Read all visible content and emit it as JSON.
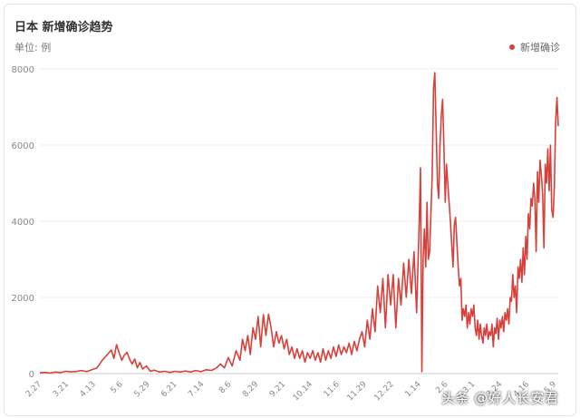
{
  "header": {
    "title": "日本 新增确诊趋势",
    "unit_label": "单位: 例"
  },
  "watermark": "头条 @好人长安君",
  "colors": {
    "series": "#d8413b",
    "grid": "#ececec",
    "axis_text": "#888888"
  },
  "chart_data": {
    "type": "line",
    "title": "日本 新增确诊趋势",
    "ylabel": "单位: 例",
    "ylim": [
      0,
      8000
    ],
    "yticks": [
      0,
      2000,
      4000,
      6000,
      8000
    ],
    "grid": true,
    "legend_position": "top-right",
    "xtick_labels": [
      "2.27",
      "3.21",
      "4.13",
      "5.6",
      "5.29",
      "6.21",
      "7.14",
      "8.6",
      "8.29",
      "9.21",
      "10.14",
      "11.6",
      "11.29",
      "12.22",
      "1.14",
      "2.6",
      "3.1",
      "3.24",
      "4.16",
      "5.9"
    ],
    "series": [
      {
        "name": "新增确诊",
        "color": "#d8413b",
        "points": [
          [
            0,
            20
          ],
          [
            4,
            30
          ],
          [
            8,
            15
          ],
          [
            12,
            40
          ],
          [
            16,
            25
          ],
          [
            20,
            60
          ],
          [
            24,
            45
          ],
          [
            28,
            55
          ],
          [
            32,
            80
          ],
          [
            36,
            50
          ],
          [
            40,
            100
          ],
          [
            44,
            150
          ],
          [
            48,
            350
          ],
          [
            52,
            500
          ],
          [
            55,
            620
          ],
          [
            57,
            400
          ],
          [
            59,
            760
          ],
          [
            61,
            550
          ],
          [
            63,
            350
          ],
          [
            65,
            480
          ],
          [
            67,
            560
          ],
          [
            69,
            380
          ],
          [
            71,
            250
          ],
          [
            73,
            380
          ],
          [
            75,
            150
          ],
          [
            77,
            290
          ],
          [
            79,
            120
          ],
          [
            82,
            200
          ],
          [
            85,
            60
          ],
          [
            88,
            90
          ],
          [
            92,
            40
          ],
          [
            96,
            60
          ],
          [
            100,
            30
          ],
          [
            104,
            60
          ],
          [
            108,
            40
          ],
          [
            112,
            70
          ],
          [
            116,
            40
          ],
          [
            120,
            80
          ],
          [
            124,
            50
          ],
          [
            128,
            100
          ],
          [
            132,
            80
          ],
          [
            136,
            150
          ],
          [
            139,
            250
          ],
          [
            142,
            150
          ],
          [
            145,
            420
          ],
          [
            148,
            200
          ],
          [
            151,
            600
          ],
          [
            154,
            350
          ],
          [
            156,
            900
          ],
          [
            158,
            600
          ],
          [
            160,
            1000
          ],
          [
            162,
            500
          ],
          [
            164,
            1200
          ],
          [
            166,
            900
          ],
          [
            168,
            1500
          ],
          [
            170,
            700
          ],
          [
            172,
            1550
          ],
          [
            174,
            1000
          ],
          [
            176,
            1560
          ],
          [
            178,
            1200
          ],
          [
            180,
            700
          ],
          [
            182,
            1100
          ],
          [
            184,
            800
          ],
          [
            186,
            1000
          ],
          [
            188,
            650
          ],
          [
            190,
            900
          ],
          [
            192,
            500
          ],
          [
            194,
            700
          ],
          [
            196,
            400
          ],
          [
            198,
            650
          ],
          [
            200,
            400
          ],
          [
            202,
            600
          ],
          [
            204,
            300
          ],
          [
            206,
            550
          ],
          [
            208,
            400
          ],
          [
            210,
            600
          ],
          [
            212,
            350
          ],
          [
            214,
            550
          ],
          [
            216,
            300
          ],
          [
            218,
            650
          ],
          [
            220,
            350
          ],
          [
            222,
            600
          ],
          [
            224,
            400
          ],
          [
            226,
            700
          ],
          [
            228,
            450
          ],
          [
            230,
            750
          ],
          [
            232,
            500
          ],
          [
            234,
            700
          ],
          [
            236,
            550
          ],
          [
            238,
            800
          ],
          [
            240,
            500
          ],
          [
            242,
            850
          ],
          [
            244,
            600
          ],
          [
            246,
            900
          ],
          [
            248,
            1100
          ],
          [
            250,
            700
          ],
          [
            252,
            1400
          ],
          [
            254,
            900
          ],
          [
            256,
            1700
          ],
          [
            258,
            1100
          ],
          [
            260,
            2300
          ],
          [
            262,
            1600
          ],
          [
            264,
            2500
          ],
          [
            266,
            1200
          ],
          [
            268,
            2600
          ],
          [
            270,
            1800
          ],
          [
            272,
            2600
          ],
          [
            274,
            1200
          ],
          [
            276,
            2500
          ],
          [
            278,
            1800
          ],
          [
            280,
            2900
          ],
          [
            282,
            2000
          ],
          [
            284,
            3000
          ],
          [
            286,
            2100
          ],
          [
            288,
            3200
          ],
          [
            290,
            1600
          ],
          [
            292,
            4000
          ],
          [
            293,
            5400
          ],
          [
            294,
            50
          ],
          [
            295,
            3000
          ],
          [
            296,
            3800
          ],
          [
            297,
            2800
          ],
          [
            298,
            4500
          ],
          [
            299,
            3000
          ],
          [
            300,
            3200
          ],
          [
            302,
            5200
          ],
          [
            303,
            7500
          ],
          [
            304,
            7900
          ],
          [
            305,
            6500
          ],
          [
            306,
            5000
          ],
          [
            307,
            4600
          ],
          [
            308,
            6000
          ],
          [
            309,
            6800
          ],
          [
            310,
            7200
          ],
          [
            311,
            6000
          ],
          [
            312,
            4500
          ],
          [
            313,
            5500
          ],
          [
            314,
            5000
          ],
          [
            316,
            4000
          ],
          [
            318,
            2800
          ],
          [
            319,
            3900
          ],
          [
            320,
            4100
          ],
          [
            322,
            2800
          ],
          [
            323,
            2300
          ],
          [
            324,
            2500
          ],
          [
            325,
            1400
          ],
          [
            326,
            1700
          ],
          [
            327,
            1500
          ],
          [
            328,
            1800
          ],
          [
            329,
            1200
          ],
          [
            330,
            1600
          ],
          [
            331,
            1300
          ],
          [
            332,
            1700
          ],
          [
            333,
            1500
          ],
          [
            334,
            1800
          ],
          [
            335,
            1200
          ],
          [
            336,
            1000
          ],
          [
            337,
            1400
          ],
          [
            338,
            900
          ],
          [
            339,
            1300
          ],
          [
            340,
            1000
          ],
          [
            341,
            800
          ],
          [
            342,
            1200
          ],
          [
            343,
            1000
          ],
          [
            344,
            1300
          ],
          [
            345,
            900
          ],
          [
            346,
            1100
          ],
          [
            347,
            1000
          ],
          [
            348,
            1300
          ],
          [
            349,
            700
          ],
          [
            350,
            1200
          ],
          [
            351,
            1050
          ],
          [
            352,
            1450
          ],
          [
            353,
            900
          ],
          [
            354,
            1400
          ],
          [
            355,
            1200
          ],
          [
            356,
            1500
          ],
          [
            357,
            1100
          ],
          [
            358,
            1600
          ],
          [
            359,
            1400
          ],
          [
            360,
            1700
          ],
          [
            361,
            1300
          ],
          [
            362,
            2000
          ],
          [
            363,
            1900
          ],
          [
            364,
            2600
          ],
          [
            365,
            2000
          ],
          [
            366,
            2300
          ],
          [
            367,
            1600
          ],
          [
            368,
            2800
          ],
          [
            369,
            2500
          ],
          [
            370,
            3000
          ],
          [
            371,
            2400
          ],
          [
            372,
            3300
          ],
          [
            373,
            2600
          ],
          [
            374,
            3600
          ],
          [
            375,
            3000
          ],
          [
            376,
            4200
          ],
          [
            377,
            3800
          ],
          [
            378,
            4600
          ],
          [
            379,
            4400
          ],
          [
            380,
            5000
          ],
          [
            381,
            4600
          ],
          [
            382,
            3200
          ],
          [
            383,
            5300
          ],
          [
            384,
            4500
          ],
          [
            385,
            5600
          ],
          [
            386,
            5200
          ],
          [
            387,
            4700
          ],
          [
            388,
            3300
          ],
          [
            389,
            5500
          ],
          [
            390,
            5000
          ],
          [
            391,
            5900
          ],
          [
            392,
            4800
          ],
          [
            393,
            6000
          ],
          [
            394,
            4300
          ],
          [
            395,
            4100
          ],
          [
            396,
            4900
          ],
          [
            397,
            6600
          ],
          [
            398,
            7250
          ],
          [
            399,
            6500
          ]
        ]
      }
    ]
  }
}
